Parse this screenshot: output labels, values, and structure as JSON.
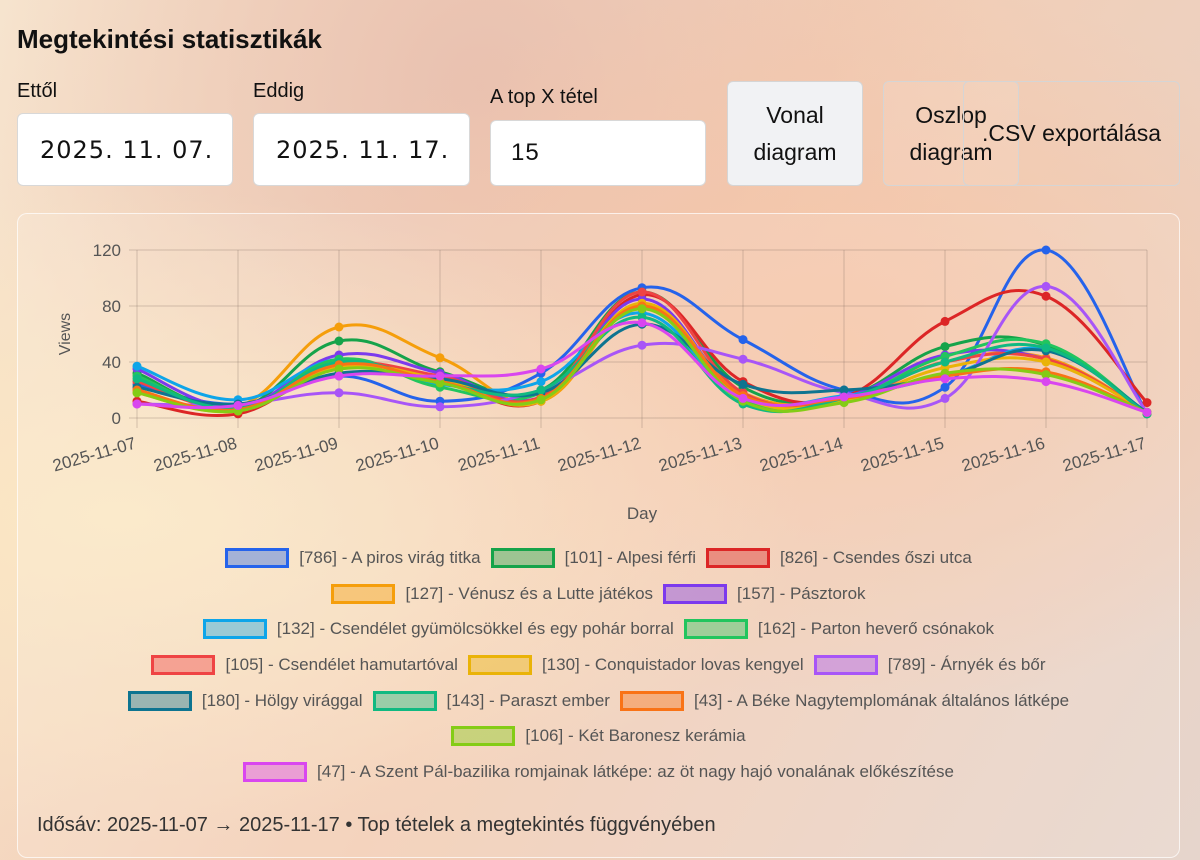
{
  "title": "Megtekintési statisztikák",
  "filters": {
    "from_label": "Ettől",
    "from_value": "2025. 11. 07.",
    "to_label": "Eddig",
    "to_value": "2025. 11. 17.",
    "top_label": "A top X tétel",
    "top_value": "15"
  },
  "buttons": {
    "line": "Vonal diagram",
    "bar": "Oszlop diagram",
    "csv": ".CSV exportálása"
  },
  "footer": "Idősáv: 2025-11-07 → 2025-11-17 • Top tételek a megtekintés függvényében",
  "chart_data": {
    "type": "line",
    "xlabel": "Day",
    "ylabel": "Views",
    "ylim": [
      0,
      120
    ],
    "yticks": [
      0,
      40,
      80,
      120
    ],
    "grid": true,
    "legend": "bottom",
    "categories": [
      "2025-11-07",
      "2025-11-08",
      "2025-11-09",
      "2025-11-10",
      "2025-11-11",
      "2025-11-12",
      "2025-11-13",
      "2025-11-14",
      "2025-11-15",
      "2025-11-16",
      "2025-11-17"
    ],
    "series": [
      {
        "name": "[786] - A piros virág titka",
        "color": "#2563eb",
        "values": [
          24,
          10,
          30,
          12,
          32,
          93,
          56,
          20,
          22,
          120,
          3
        ]
      },
      {
        "name": "[101] - Alpesi férfi",
        "color": "#16a34a",
        "values": [
          32,
          7,
          55,
          33,
          20,
          90,
          22,
          15,
          51,
          52,
          3
        ]
      },
      {
        "name": "[826] - Csendes őszi utca",
        "color": "#dc2626",
        "values": [
          12,
          3,
          38,
          28,
          12,
          88,
          26,
          15,
          69,
          87,
          11
        ]
      },
      {
        "name": "[127] - Vénusz és a Lutte játékos",
        "color": "#f59e0b",
        "values": [
          20,
          8,
          65,
          43,
          12,
          80,
          18,
          14,
          40,
          43,
          4
        ]
      },
      {
        "name": "[157] - Pásztorok",
        "color": "#7c3aed",
        "values": [
          35,
          8,
          45,
          32,
          15,
          85,
          15,
          15,
          45,
          42,
          4
        ]
      },
      {
        "name": "[132] - Csendélet gyümölcsökkel és egy pohár borral",
        "color": "#0ea5e9",
        "values": [
          37,
          13,
          42,
          24,
          26,
          75,
          14,
          16,
          30,
          49,
          4
        ]
      },
      {
        "name": "[162] - Parton heverő csónakok",
        "color": "#22c55e",
        "values": [
          30,
          6,
          42,
          22,
          18,
          80,
          14,
          13,
          44,
          53,
          3
        ]
      },
      {
        "name": "[105] - Csendélet hamutartóval",
        "color": "#ef4444",
        "values": [
          26,
          7,
          38,
          30,
          15,
          90,
          18,
          13,
          40,
          42,
          4
        ]
      },
      {
        "name": "[130] - Conquistador lovas kengyel",
        "color": "#eab308",
        "values": [
          18,
          5,
          36,
          28,
          12,
          82,
          15,
          12,
          36,
          40,
          4
        ]
      },
      {
        "name": "[789] - Árnyék és bőr",
        "color": "#a855f7",
        "values": [
          10,
          10,
          18,
          8,
          20,
          52,
          42,
          18,
          14,
          94,
          4
        ]
      },
      {
        "name": "[180] - Hölgy virággal",
        "color": "#0e7490",
        "values": [
          22,
          10,
          32,
          28,
          18,
          67,
          24,
          20,
          30,
          48,
          4
        ]
      },
      {
        "name": "[143] - Paraszt ember",
        "color": "#10b981",
        "values": [
          28,
          7,
          40,
          25,
          20,
          72,
          10,
          14,
          40,
          50,
          3
        ]
      },
      {
        "name": "[43] - A Béke Nagytemplomának általános látképe",
        "color": "#f97316",
        "values": [
          20,
          6,
          38,
          26,
          14,
          80,
          16,
          14,
          30,
          33,
          4
        ]
      },
      {
        "name": "[106] - Két Baronesz kerámia",
        "color": "#84cc16",
        "values": [
          18,
          5,
          35,
          25,
          13,
          78,
          12,
          11,
          32,
          31,
          4
        ]
      },
      {
        "name": "[47] - A Szent Pál-bazilika romjainak látképe: az öt nagy hajó vonalának előkészítése",
        "color": "#d946ef",
        "values": [
          10,
          9,
          30,
          30,
          35,
          68,
          14,
          15,
          28,
          26,
          4
        ]
      }
    ]
  }
}
